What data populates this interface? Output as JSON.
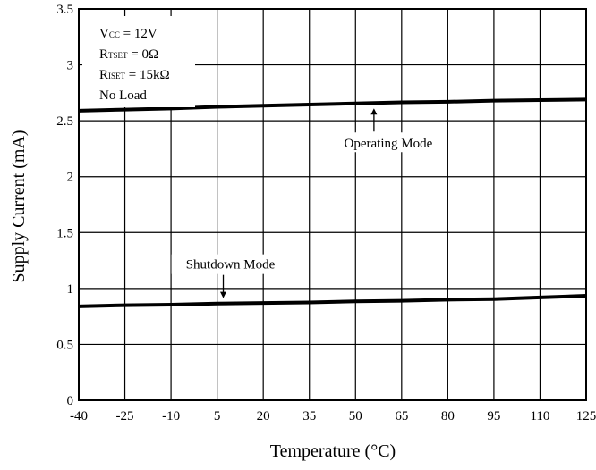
{
  "chart_data": {
    "type": "line",
    "xlabel": "Temperature (°C)",
    "ylabel": "Supply Current (mA)",
    "xlim": [
      -40,
      125
    ],
    "ylim": [
      0,
      3.5
    ],
    "x_ticks": [
      -40,
      -25,
      -10,
      5,
      20,
      35,
      50,
      65,
      80,
      95,
      110,
      125
    ],
    "y_ticks": [
      0,
      0.5,
      1,
      1.5,
      2,
      2.5,
      3,
      3.5
    ],
    "grid": true,
    "conditions": [
      {
        "text": "V",
        "sub": "CC",
        "rest": " = 12V"
      },
      {
        "text": "R",
        "sub": "TSET",
        "rest": " = 0Ω"
      },
      {
        "text": "R",
        "sub": "ISET",
        "rest": " = 15kΩ"
      },
      {
        "text": "No Load",
        "sub": "",
        "rest": ""
      }
    ],
    "series": [
      {
        "name": "Operating Mode",
        "x": [
          -40,
          -25,
          -10,
          5,
          20,
          35,
          50,
          65,
          80,
          95,
          110,
          125
        ],
        "y": [
          2.59,
          2.6,
          2.61,
          2.625,
          2.635,
          2.645,
          2.655,
          2.665,
          2.67,
          2.68,
          2.685,
          2.69
        ]
      },
      {
        "name": "Shutdown Mode",
        "x": [
          -40,
          -25,
          -10,
          5,
          20,
          35,
          50,
          65,
          80,
          95,
          110,
          125
        ],
        "y": [
          0.84,
          0.85,
          0.855,
          0.865,
          0.87,
          0.875,
          0.885,
          0.89,
          0.9,
          0.905,
          0.92,
          0.935
        ]
      }
    ],
    "annotations": [
      {
        "text": "Operating Mode",
        "series": 0,
        "arrow_x": 56,
        "arrow_direction": "up"
      },
      {
        "text": "Shutdown Mode",
        "series": 1,
        "arrow_x": 7,
        "arrow_direction": "down"
      }
    ]
  }
}
